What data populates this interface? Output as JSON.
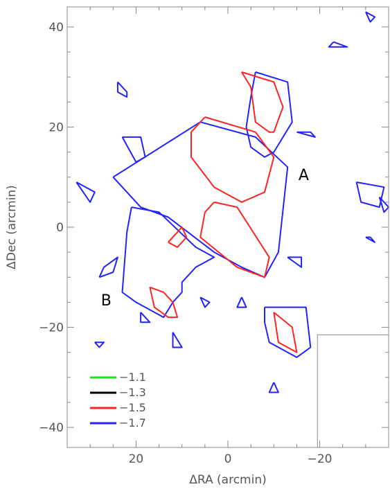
{
  "chart_data": {
    "type": "contour",
    "xlabel": "ΔRA (arcmin)",
    "ylabel": "ΔDec (arcmin)",
    "xlim": [
      35,
      -35
    ],
    "ylim": [
      -44,
      44
    ],
    "x_ticks": [
      20,
      0,
      -20
    ],
    "x_tick_labels": [
      "20",
      "0",
      "−20"
    ],
    "y_ticks": [
      40,
      20,
      0,
      -20,
      -40
    ],
    "y_tick_labels": [
      "40",
      "20",
      "0",
      "−20",
      "−40"
    ],
    "legend_position": "bottom-left",
    "series": [
      {
        "name": "−1.1",
        "color": "#22dd22"
      },
      {
        "name": "−1.3",
        "color": "#000000"
      },
      {
        "name": "−1.5",
        "color": "#ff2222"
      },
      {
        "name": "−1.7",
        "color": "#2222ff"
      }
    ],
    "annotations": [
      {
        "text": "A",
        "x": -16.5,
        "y": 10.5
      },
      {
        "text": "B",
        "x": 26.5,
        "y": -14.5
      }
    ],
    "inset_box": {
      "x": [
        -19.5,
        -35
      ],
      "y": [
        -21.5,
        -44
      ]
    },
    "contours": [
      {
        "level": 3,
        "points": [
          [
            25,
            10
          ],
          [
            6,
            21
          ],
          [
            -6,
            18
          ],
          [
            -13,
            12
          ],
          [
            -11,
            -5
          ],
          [
            -8,
            -10
          ],
          [
            -3,
            -8
          ],
          [
            3,
            -5
          ],
          [
            13,
            2
          ],
          [
            19,
            4
          ],
          [
            25,
            10
          ]
        ]
      },
      {
        "level": 3,
        "points": [
          [
            21,
            4
          ],
          [
            15,
            3
          ],
          [
            7,
            -4
          ],
          [
            3,
            -6
          ],
          [
            7,
            -8
          ],
          [
            10,
            -11
          ],
          [
            10,
            -13
          ],
          [
            12,
            -15
          ],
          [
            14,
            -18
          ],
          [
            20,
            -15
          ],
          [
            23,
            -13
          ],
          [
            22,
            -1
          ],
          [
            21,
            4
          ]
        ]
      },
      {
        "level": 3,
        "points": [
          [
            -6,
            31
          ],
          [
            -13,
            29
          ],
          [
            -14,
            21
          ],
          [
            -10,
            15
          ],
          [
            -8,
            14
          ],
          [
            -5,
            16
          ],
          [
            -4,
            20
          ],
          [
            -5,
            26
          ],
          [
            -6,
            31
          ]
        ]
      },
      {
        "level": 3,
        "points": [
          [
            -8,
            -16
          ],
          [
            -17,
            -16
          ],
          [
            -18,
            -24
          ],
          [
            -15,
            -26
          ],
          [
            -9,
            -23
          ],
          [
            -8,
            -19
          ],
          [
            -8,
            -16
          ]
        ]
      },
      {
        "level": 3,
        "points": [
          [
            -28,
            9
          ],
          [
            -34,
            8
          ],
          [
            -33,
            4
          ],
          [
            -29,
            5
          ],
          [
            -28,
            9
          ]
        ]
      },
      {
        "level": 3,
        "points": [
          [
            33,
            9
          ],
          [
            30,
            5
          ],
          [
            29,
            7
          ],
          [
            33,
            9
          ]
        ]
      },
      {
        "level": 3,
        "points": [
          [
            24,
            29
          ],
          [
            22,
            27
          ],
          [
            22,
            26
          ],
          [
            24,
            27
          ],
          [
            24,
            29
          ]
        ]
      },
      {
        "level": 3,
        "points": [
          [
            23,
            18
          ],
          [
            20,
            13
          ],
          [
            18,
            14
          ],
          [
            19,
            18
          ],
          [
            23,
            18
          ]
        ]
      },
      {
        "level": 3,
        "points": [
          [
            28,
            -10
          ],
          [
            25,
            -9
          ],
          [
            24,
            -6
          ],
          [
            27,
            -8
          ],
          [
            28,
            -10
          ]
        ]
      },
      {
        "level": 3,
        "points": [
          [
            19,
            -17
          ],
          [
            17,
            -19
          ],
          [
            19,
            -19
          ],
          [
            19,
            -17
          ]
        ]
      },
      {
        "level": 3,
        "points": [
          [
            12,
            -21
          ],
          [
            10,
            -24
          ],
          [
            12,
            -24
          ],
          [
            12,
            -21
          ]
        ]
      },
      {
        "level": 3,
        "points": [
          [
            -23,
            37
          ],
          [
            -26,
            36
          ],
          [
            -22,
            36
          ],
          [
            -23,
            37
          ]
        ]
      },
      {
        "level": 3,
        "points": [
          [
            -30,
            43
          ],
          [
            -32,
            42
          ],
          [
            -31,
            41
          ],
          [
            -30,
            43
          ]
        ]
      },
      {
        "level": 3,
        "points": [
          [
            -15,
            19
          ],
          [
            -19,
            18
          ],
          [
            -18,
            19
          ],
          [
            -15,
            19
          ]
        ]
      },
      {
        "level": 3,
        "points": [
          [
            -13,
            -6
          ],
          [
            -16,
            -8
          ],
          [
            -16,
            -6
          ],
          [
            -13,
            -6
          ]
        ]
      },
      {
        "level": 3,
        "points": [
          [
            -10,
            -31
          ],
          [
            -11,
            -33
          ],
          [
            -9,
            -33
          ],
          [
            -10,
            -31
          ]
        ]
      },
      {
        "level": 3,
        "points": [
          [
            29,
            -23
          ],
          [
            27,
            -23
          ],
          [
            28,
            -24
          ],
          [
            29,
            -23
          ]
        ]
      },
      {
        "level": 3,
        "points": [
          [
            -33,
            6
          ],
          [
            -35,
            4
          ],
          [
            -34,
            3
          ],
          [
            -33,
            6
          ]
        ]
      },
      {
        "level": 3,
        "points": [
          [
            -30,
            -2
          ],
          [
            -32,
            -3
          ],
          [
            -31,
            -2
          ],
          [
            -30,
            -2
          ]
        ]
      },
      {
        "level": 3,
        "points": [
          [
            6,
            -14
          ],
          [
            5,
            -16
          ],
          [
            4,
            -15
          ],
          [
            6,
            -14
          ]
        ]
      },
      {
        "level": 3,
        "points": [
          [
            -3,
            -14
          ],
          [
            -4,
            -16
          ],
          [
            -2,
            -16
          ],
          [
            -3,
            -14
          ]
        ]
      },
      {
        "level": 2,
        "points": [
          [
            5,
            22
          ],
          [
            -6,
            19
          ],
          [
            -10,
            14
          ],
          [
            -8,
            7
          ],
          [
            -3,
            5
          ],
          [
            3,
            8
          ],
          [
            8,
            14
          ],
          [
            8,
            19
          ],
          [
            5,
            22
          ]
        ]
      },
      {
        "level": 2,
        "points": [
          [
            3,
            5
          ],
          [
            -2,
            4
          ],
          [
            -9,
            -6
          ],
          [
            -8,
            -10
          ],
          [
            -2,
            -8
          ],
          [
            6,
            -2
          ],
          [
            5,
            3
          ],
          [
            3,
            5
          ]
        ]
      },
      {
        "level": 2,
        "points": [
          [
            -3,
            31
          ],
          [
            -10,
            29
          ],
          [
            -12,
            24
          ],
          [
            -10,
            19
          ],
          [
            -9,
            19
          ],
          [
            -6,
            21
          ],
          [
            -5,
            28
          ],
          [
            -3,
            31
          ]
        ]
      },
      {
        "level": 2,
        "points": [
          [
            -10,
            -17
          ],
          [
            -14,
            -20
          ],
          [
            -15,
            -25
          ],
          [
            -11,
            -23
          ],
          [
            -10,
            -17
          ]
        ]
      },
      {
        "level": 2,
        "points": [
          [
            17,
            -12
          ],
          [
            14,
            -13
          ],
          [
            12,
            -15
          ],
          [
            11,
            -18
          ],
          [
            13,
            -18
          ],
          [
            16,
            -16
          ],
          [
            17,
            -12
          ]
        ]
      },
      {
        "level": 2,
        "points": [
          [
            13,
            -3
          ],
          [
            10,
            0
          ],
          [
            9,
            -2
          ],
          [
            11,
            -4
          ],
          [
            13,
            -3
          ]
        ]
      }
    ]
  }
}
